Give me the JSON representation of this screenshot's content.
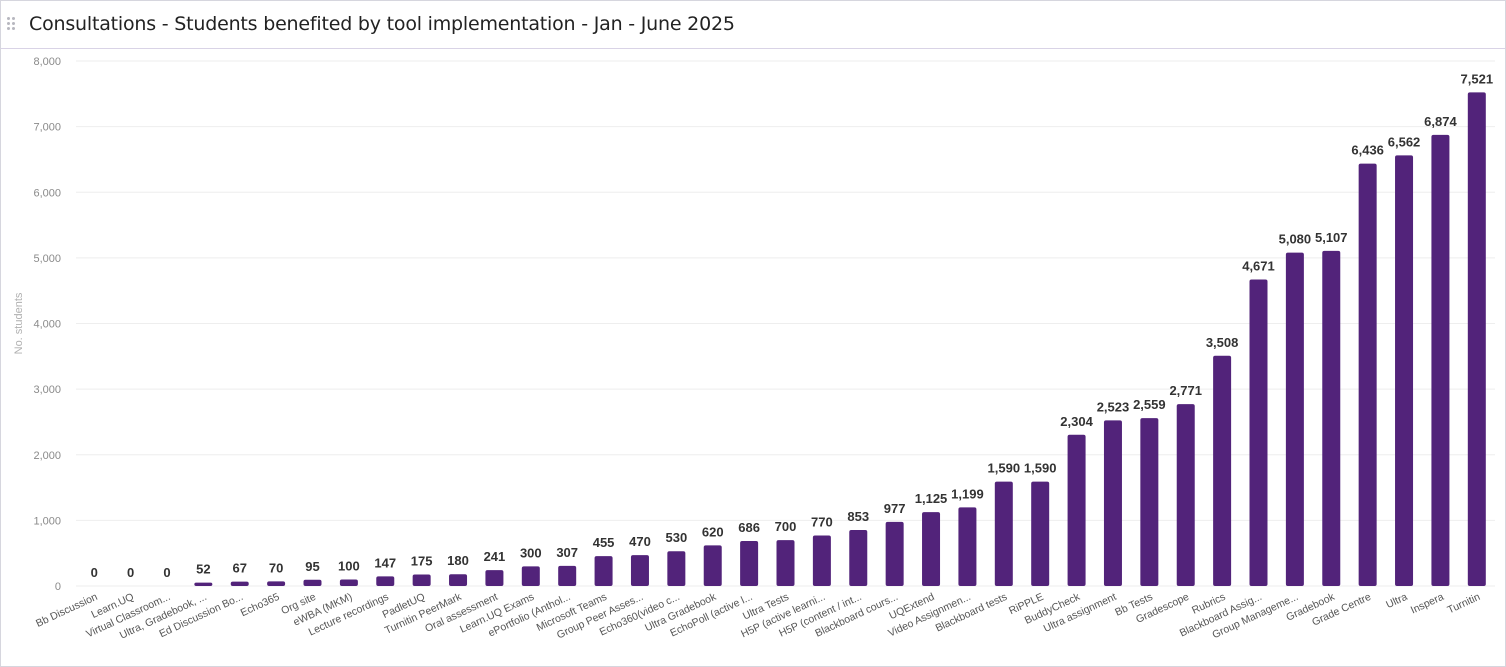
{
  "header": {
    "title": "Consultations - Students benefited by tool implementation - Jan - June 2025"
  },
  "colors": {
    "bar": "#52237a",
    "grid": "#eeeeee",
    "axis_text": "#8a8a8a",
    "label_text": "#333333",
    "header_border": "#d9d3e6"
  },
  "chart_data": {
    "type": "bar",
    "title": "Consultations - Students benefited by tool implementation - Jan - June 2025",
    "xlabel": "",
    "ylabel": "No. students",
    "ylim": [
      0,
      8000
    ],
    "yticks": [
      0,
      1000,
      2000,
      3000,
      4000,
      5000,
      6000,
      7000,
      8000
    ],
    "ytick_labels": [
      "0",
      "1,000",
      "2,000",
      "3,000",
      "4,000",
      "5,000",
      "6,000",
      "7,000",
      "8,000"
    ],
    "grid": true,
    "legend": "none",
    "categories": [
      "Bb Discussion",
      "Learn.UQ",
      "Virtual Classroom...",
      "Ultra, Gradebook, ...",
      "Ed Discussion Bo...",
      "Echo365",
      "Org site",
      "eWBA (MKM)",
      "Lecture recordings",
      "PadletUQ",
      "Turnitin PeerMark",
      "Oral assessment",
      "Learn.UQ Exams",
      "ePortfolio (Anthol...",
      "Microsoft Teams",
      "Group Peer Asses...",
      "Echo360(video c...",
      "Ultra Gradebook",
      "EchoPoll (active l...",
      "Ultra Tests",
      "H5P (active learni...",
      "H5P (content / int...",
      "Blackboard cours...",
      "UQExtend",
      "Video Assignmen...",
      "Blackboard tests",
      "RiPPLE",
      "BuddyCheck",
      "Ultra assignment",
      "Bb Tests",
      "Gradescope",
      "Rubrics",
      "Blackboard Assig...",
      "Group Manageme...",
      "Gradebook",
      "Grade Centre",
      "Ultra",
      "Inspera",
      "Turnitin"
    ],
    "values": [
      0,
      0,
      0,
      52,
      67,
      70,
      95,
      100,
      147,
      175,
      180,
      241,
      300,
      307,
      455,
      470,
      530,
      620,
      686,
      700,
      770,
      853,
      977,
      1125,
      1199,
      1590,
      1590,
      2304,
      2523,
      2559,
      2771,
      3508,
      4671,
      5080,
      5107,
      6436,
      6562,
      6874,
      7521
    ],
    "value_labels": [
      "0",
      "0",
      "0",
      "52",
      "67",
      "70",
      "95",
      "100",
      "147",
      "175",
      "180",
      "241",
      "300",
      "307",
      "455",
      "470",
      "530",
      "620",
      "686",
      "700",
      "770",
      "853",
      "977",
      "1,125",
      "1,199",
      "1,590",
      "1,590",
      "2,304",
      "2,523",
      "2,559",
      "2,771",
      "3,508",
      "4,671",
      "5,080",
      "5,107",
      "6,436",
      "6,562",
      "6,874",
      "7,521"
    ]
  }
}
